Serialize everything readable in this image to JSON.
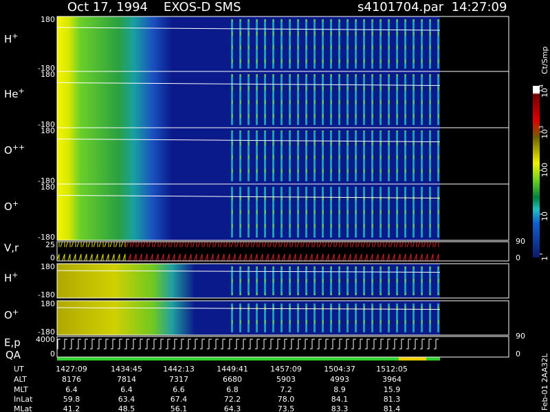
{
  "header": {
    "title": "Oct 17, 1994    EXOS-D SMS",
    "file": "s4101704.par  14:27:09"
  },
  "panels": [
    {
      "label": "H",
      "sup": "+",
      "ticks": [
        "180",
        "-180"
      ]
    },
    {
      "label": "He",
      "sup": "+",
      "ticks": [
        "180",
        "-180"
      ]
    },
    {
      "label": "O",
      "sup": "++",
      "ticks": [
        "180",
        "-180"
      ]
    },
    {
      "label": "O",
      "sup": "+",
      "ticks": [
        "180",
        "-180"
      ]
    },
    {
      "label": "V,r",
      "ticks": [
        "25",
        "0"
      ],
      "right_ticks": [
        "90",
        "0"
      ]
    },
    {
      "label": "H",
      "sup": "+",
      "ticks": [
        "180",
        "-180"
      ]
    },
    {
      "label": "O",
      "sup": "+",
      "ticks": [
        "180",
        "-180"
      ]
    },
    {
      "label": "E,p",
      "label2": "QA",
      "ticks": [
        "4000",
        "0"
      ],
      "right_ticks": [
        "90",
        "0"
      ]
    }
  ],
  "colorbar": {
    "title": "Ct/Smp",
    "ticks": [
      {
        "text": "10",
        "sup": "4"
      },
      {
        "text": "10",
        "sup": "3"
      },
      {
        "text": "100"
      },
      {
        "text": "10"
      },
      {
        "text": "1"
      }
    ]
  },
  "side_note": "Feb-01 2AA32L",
  "table": {
    "rows": [
      {
        "name": "UT",
        "values": [
          "1427:09",
          "1434:45",
          "1442:13",
          "1449:41",
          "1457:09",
          "1504:37",
          "1512:05"
        ]
      },
      {
        "name": "ALT",
        "values": [
          "8176",
          "7814",
          "7317",
          "6680",
          "5903",
          "4993",
          "3964"
        ]
      },
      {
        "name": "MLT",
        "values": [
          "6.4",
          "6.4",
          "6.6",
          "6.8",
          "7.2",
          "8.9",
          "15.9"
        ]
      },
      {
        "name": "InLat",
        "values": [
          "59.8",
          "63.4",
          "67.4",
          "72.2",
          "78.0",
          "84.1",
          "81.3"
        ]
      },
      {
        "name": "MLat",
        "values": [
          "41.2",
          "48.5",
          "56.1",
          "64.3",
          "73.5",
          "83.3",
          "81.4"
        ]
      }
    ]
  }
}
